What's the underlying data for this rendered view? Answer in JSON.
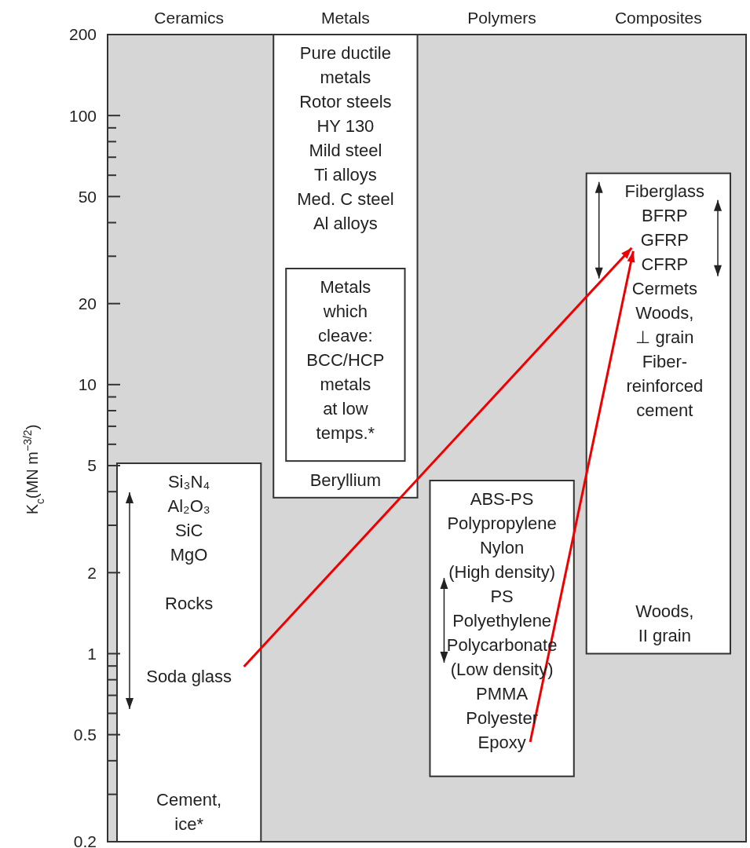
{
  "chart_data": {
    "type": "bar",
    "categories": [
      "Ceramics",
      "Metals",
      "Polymers",
      "Composites"
    ],
    "series": [
      {
        "color": "#ffffff",
        "base": [
          0.2,
          3.8,
          0.35,
          1.0
        ],
        "values": [
          4.9,
          196.2,
          4.05,
          60
        ]
      },
      {
        "color": "#ffffff",
        "base": [
          null,
          5.2,
          null,
          null
        ],
        "values": [
          null,
          21.8,
          null,
          null
        ]
      }
    ],
    "log": true,
    "ylim": [
      0.2,
      200
    ],
    "yticks": [
      0.2,
      {
        "value": 0.3,
        "label": null
      },
      {
        "value": 0.4,
        "label": null
      },
      0.5,
      {
        "value": 0.6,
        "label": null
      },
      {
        "value": 0.7,
        "label": null
      },
      {
        "value": 0.8,
        "label": null
      },
      {
        "value": 0.9,
        "label": null
      },
      1,
      2,
      {
        "value": 3,
        "label": null
      },
      {
        "value": 4,
        "label": null
      },
      5,
      {
        "value": 6,
        "label": null
      },
      {
        "value": 7,
        "label": null
      },
      {
        "value": 8,
        "label": null
      },
      {
        "value": 9,
        "label": null
      },
      10,
      20,
      {
        "value": 30,
        "label": null
      },
      {
        "value": 40,
        "label": null
      },
      50,
      {
        "value": 60,
        "label": null
      },
      {
        "value": 70,
        "label": null
      },
      {
        "value": 80,
        "label": null
      },
      {
        "value": 90,
        "label": null
      },
      100,
      200
    ],
    "ylabel": "K$_{c}$(MN m$^{−3/2}$)",
    "annotations": [
      "Si₃N₄\nAl₂O₃\nSiC\nMgO\n\n\n\nRocks\n\n\n\n\n\nSoda glass",
      "Cement,\nice*",
      "Pure ductile\nmetals\nRotor steels\nHY 130\nMild steel\nTi alloys\n\nMed. C steel\n\nAl alloys",
      "Metals\nwhich\ncleave:\n\nBCC/HCP\nmetals\nat low\ntemps.*",
      "Beryllium",
      "ABS-PS\nPolypropylene\nNylon\n(High density)\nPS\nPolyethylene\nPolycarbonate\n(Low density)\nPMMA\nPolyester\nEpoxy",
      "Fiberglass\nBFRP\nGFRP\nCFRP\n\nCermets\n\nWoods,\n⊥ grain\nFiber-\nreinforced\ncement",
      "Woods,\nII grain"
    ]
  }
}
